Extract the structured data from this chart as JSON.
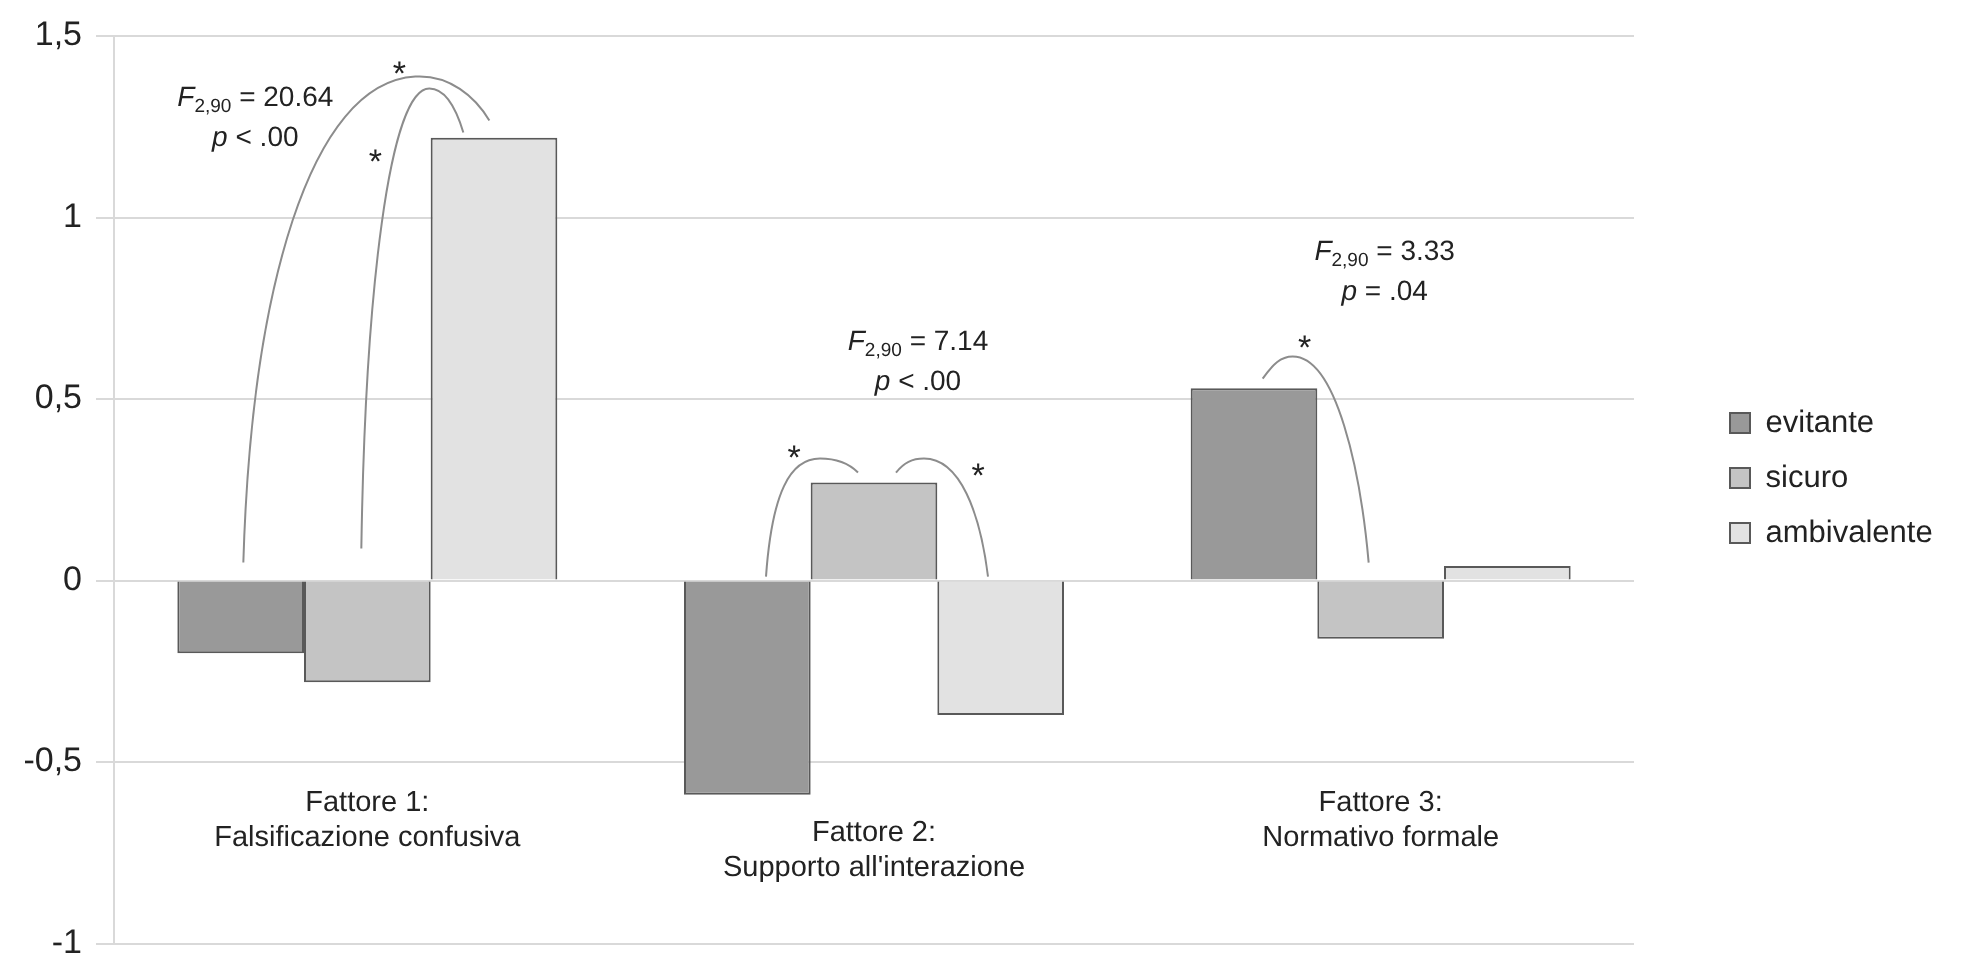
{
  "chart_data": {
    "type": "bar",
    "categories": [
      "Fattore 1:\nFalsificazione confusiva",
      "Fattore 2:\nSupporto all'interazione",
      "Fattore 3:\nNormativo formale"
    ],
    "series": [
      {
        "name": "evitante",
        "color": "#999999",
        "values": [
          -0.2,
          -0.59,
          0.53
        ]
      },
      {
        "name": "sicuro",
        "color": "#c4c4c4",
        "values": [
          -0.28,
          0.27,
          -0.16
        ]
      },
      {
        "name": "ambivalente",
        "color": "#e2e2e2",
        "values": [
          1.22,
          -0.37,
          0.04
        ]
      }
    ],
    "ylim": [
      -1,
      1.5
    ],
    "yticks": [
      -1,
      {
        "value": -0.5,
        "label": "-0,5"
      },
      0,
      {
        "value": 0.5,
        "label": "0,5"
      },
      1,
      {
        "value": 1.5,
        "label": "1,5"
      }
    ],
    "grid": "y",
    "legend": "right",
    "annotations": [
      "F$_{2,90}$ = 20.64\np < .00",
      "*",
      "*",
      "F$_{2,90}$ = 7.14\np < .00",
      "*",
      "*",
      "F$_{2,90}$ = 3.33\np = .04",
      "*"
    ]
  }
}
